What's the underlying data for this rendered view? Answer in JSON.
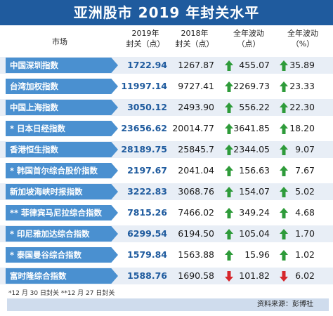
{
  "title": "亚洲股市 2019 年封关水平",
  "headers": {
    "market": "市场",
    "close2019": [
      "2019年",
      "封关（点）"
    ],
    "close2018": [
      "2018年",
      "封关（点）"
    ],
    "change_pts": [
      "全年波动",
      "（点）"
    ],
    "change_pct": [
      "全年波动",
      "（%）"
    ]
  },
  "footnote": "*12 月 30 日封关 **12 月 27 日封关",
  "source": "资料来源：彭博社",
  "colors": {
    "title_bg": "#1f5b9e",
    "label_bg": "#4a90d0",
    "up": "#2e9b3a",
    "down": "#d6262b"
  },
  "chart_data": {
    "type": "table",
    "title": "亚洲股市 2019 年封关水平",
    "columns": [
      "市场",
      "2019年封关（点）",
      "2018年封关（点）",
      "全年波动（点）",
      "全年波动（%）"
    ],
    "rows": [
      {
        "market": "中国深圳指数",
        "close2019": "1722.94",
        "close2018": "1267.87",
        "dir": "up",
        "pts": "455.07",
        "pct": "35.89"
      },
      {
        "market": "台湾加权指数",
        "close2019": "11997.14",
        "close2018": "9727.41",
        "dir": "up",
        "pts": "2269.73",
        "pct": "23.33"
      },
      {
        "market": "中国上海指数",
        "close2019": "3050.12",
        "close2018": "2493.90",
        "dir": "up",
        "pts": "556.22",
        "pct": "22.30"
      },
      {
        "market": "* 日本日经指数",
        "close2019": "23656.62",
        "close2018": "20014.77",
        "dir": "up",
        "pts": "3641.85",
        "pct": "18.20"
      },
      {
        "market": "香港恒生指数",
        "close2019": "28189.75",
        "close2018": "25845.7",
        "dir": "up",
        "pts": "2344.05",
        "pct": "9.07"
      },
      {
        "market": "* 韩国首尔综合股价指数",
        "close2019": "2197.67",
        "close2018": "2041.04",
        "dir": "up",
        "pts": "156.63",
        "pct": "7.67"
      },
      {
        "market": "新加坡海峡时报指数",
        "close2019": "3222.83",
        "close2018": "3068.76",
        "dir": "up",
        "pts": "154.07",
        "pct": "5.02"
      },
      {
        "market": "** 菲律宾马尼拉综合指数",
        "close2019": "7815.26",
        "close2018": "7466.02",
        "dir": "up",
        "pts": "349.24",
        "pct": "4.68"
      },
      {
        "market": "* 印尼雅加达综合指数",
        "close2019": "6299.54",
        "close2018": "6194.50",
        "dir": "up",
        "pts": "105.04",
        "pct": "1.70"
      },
      {
        "market": "* 泰国曼谷综合指数",
        "close2019": "1579.84",
        "close2018": "1563.88",
        "dir": "up",
        "pts": "15.96",
        "pct": "1.02"
      },
      {
        "market": "富时隆综合指数",
        "close2019": "1588.76",
        "close2018": "1690.58",
        "dir": "down",
        "pts": "101.82",
        "pct": "6.02"
      }
    ]
  }
}
